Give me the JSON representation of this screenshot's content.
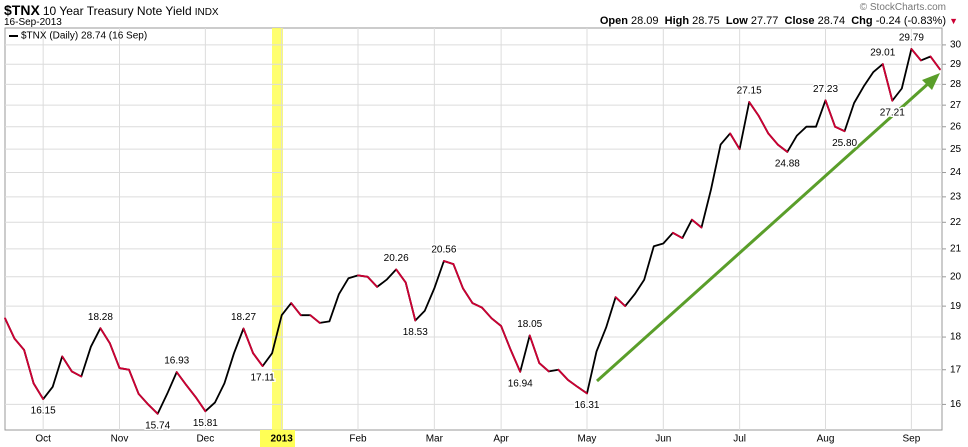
{
  "header": {
    "symbol": "$TNX",
    "name": "10 Year Treasury Note Yield",
    "exchange": "INDX",
    "date": "16-Sep-2013",
    "source": "© StockCharts.com",
    "open_label": "Open",
    "open": 28.09,
    "high_label": "High",
    "high": 28.75,
    "low_label": "Low",
    "low": 27.77,
    "close_label": "Close",
    "close": 28.74,
    "chg_label": "Chg",
    "chg": "-0.24 (-0.83%)"
  },
  "chart_data": {
    "type": "line",
    "legend": "$TNX (Daily) 28.74 (16 Sep)",
    "categories": [
      null,
      null,
      null,
      null,
      "Oct",
      null,
      null,
      null,
      null,
      null,
      null,
      null,
      "Nov",
      null,
      null,
      null,
      null,
      null,
      null,
      null,
      null,
      "Dec",
      null,
      null,
      null,
      null,
      null,
      null,
      null,
      "2013",
      null,
      null,
      null,
      null,
      null,
      null,
      null,
      "Feb",
      null,
      null,
      null,
      null,
      null,
      null,
      null,
      "Mar",
      null,
      null,
      null,
      null,
      null,
      null,
      "Apr",
      null,
      null,
      null,
      null,
      null,
      null,
      null,
      null,
      "May",
      null,
      null,
      null,
      null,
      null,
      null,
      null,
      "Jun",
      null,
      null,
      null,
      null,
      null,
      null,
      null,
      "Jul",
      null,
      null,
      null,
      null,
      null,
      null,
      null,
      null,
      "Aug",
      null,
      null,
      null,
      null,
      null,
      null,
      null,
      null,
      "Sep",
      null,
      null,
      null
    ],
    "values": [
      18.6,
      17.95,
      17.6,
      16.6,
      16.15,
      16.5,
      17.4,
      16.95,
      16.8,
      17.7,
      18.28,
      17.8,
      17.05,
      17.0,
      16.3,
      16.0,
      15.74,
      16.3,
      16.93,
      16.55,
      16.2,
      15.81,
      16.05,
      16.6,
      17.5,
      18.27,
      17.5,
      17.11,
      17.5,
      18.7,
      19.1,
      18.7,
      18.7,
      18.45,
      18.5,
      19.4,
      19.95,
      20.05,
      20.0,
      19.65,
      19.9,
      20.26,
      19.8,
      18.53,
      18.85,
      19.6,
      20.56,
      20.45,
      19.6,
      19.1,
      18.95,
      18.6,
      18.35,
      17.6,
      16.94,
      18.05,
      17.2,
      16.95,
      17.0,
      16.7,
      16.5,
      16.31,
      17.55,
      18.3,
      19.3,
      19.0,
      19.4,
      19.9,
      21.1,
      21.2,
      21.6,
      21.4,
      22.1,
      21.8,
      23.3,
      25.2,
      25.7,
      25.0,
      27.15,
      26.5,
      25.7,
      25.2,
      24.88,
      25.6,
      26.0,
      26.0,
      27.23,
      26.0,
      25.8,
      27.1,
      27.9,
      28.6,
      29.01,
      27.21,
      27.8,
      29.79,
      29.2,
      29.4,
      28.74
    ],
    "value_labels": [
      null,
      null,
      null,
      null,
      "16.15",
      null,
      null,
      null,
      null,
      null,
      "18.28",
      null,
      null,
      null,
      null,
      null,
      "15.74",
      null,
      "16.93",
      null,
      null,
      "15.81",
      null,
      null,
      null,
      "18.27",
      null,
      "17.11",
      null,
      null,
      null,
      null,
      null,
      null,
      null,
      null,
      null,
      null,
      null,
      null,
      null,
      "20.26",
      null,
      "18.53",
      null,
      null,
      "20.56",
      null,
      null,
      null,
      null,
      null,
      null,
      null,
      "16.94",
      "18.05",
      null,
      null,
      null,
      null,
      null,
      "16.31",
      null,
      null,
      null,
      null,
      null,
      null,
      null,
      null,
      null,
      null,
      null,
      null,
      null,
      null,
      null,
      null,
      "27.15",
      null,
      null,
      null,
      "24.88",
      null,
      null,
      null,
      "27.23",
      null,
      "25.80",
      null,
      null,
      null,
      "29.01",
      "27.21",
      null,
      "29.79",
      null,
      null,
      null
    ],
    "up_color": "#000000",
    "down_color": "#cc0033",
    "ylim": [
      15.3,
      30.9
    ],
    "ylog": true,
    "yticks": [
      16,
      17,
      18,
      19,
      20,
      21,
      22,
      23,
      24,
      25,
      26,
      27,
      28,
      29,
      30
    ],
    "grid": true
  }
}
